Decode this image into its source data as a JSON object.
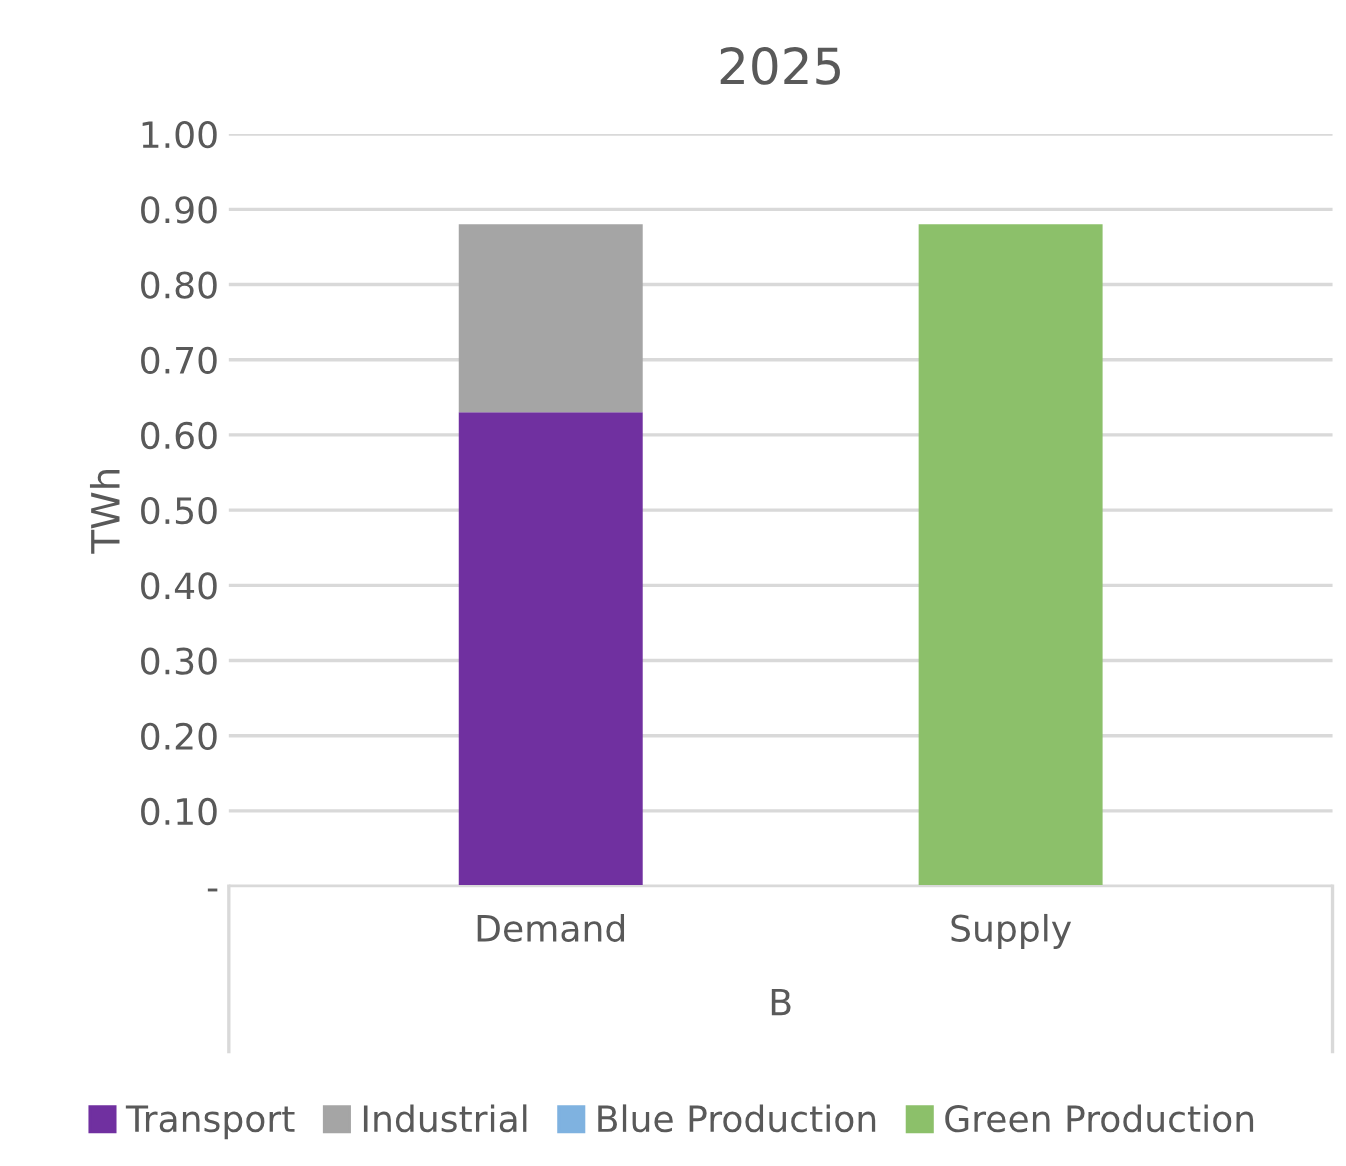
{
  "chart_data": {
    "type": "bar",
    "title": "2025",
    "ylabel": "TWh",
    "xlabel": "B",
    "categories": [
      "Demand",
      "Supply"
    ],
    "stacked": true,
    "series": [
      {
        "name": "Transport",
        "color": "#7030a0",
        "values": [
          0.63,
          null
        ]
      },
      {
        "name": "Industrial",
        "color": "#a5a5a5",
        "values": [
          0.25,
          null
        ]
      },
      {
        "name": "Blue Production",
        "color": "#7fb2e0",
        "values": [
          null,
          null
        ]
      },
      {
        "name": "Green Production",
        "color": "#8cc06a",
        "values": [
          null,
          0.88
        ]
      }
    ],
    "ylim": [
      0,
      1.0
    ],
    "yticks": [
      {
        "value": 0,
        "label": "-"
      },
      {
        "value": 0.1,
        "label": "0.10"
      },
      {
        "value": 0.2,
        "label": "0.20"
      },
      {
        "value": 0.3,
        "label": "0.30"
      },
      {
        "value": 0.4,
        "label": "0.40"
      },
      {
        "value": 0.5,
        "label": "0.50"
      },
      {
        "value": 0.6,
        "label": "0.60"
      },
      {
        "value": 0.7,
        "label": "0.70"
      },
      {
        "value": 0.8,
        "label": "0.80"
      },
      {
        "value": 0.9,
        "label": "0.90"
      },
      {
        "value": 1.0,
        "label": "1.00"
      }
    ],
    "grid": "y",
    "legend": "bottom"
  }
}
